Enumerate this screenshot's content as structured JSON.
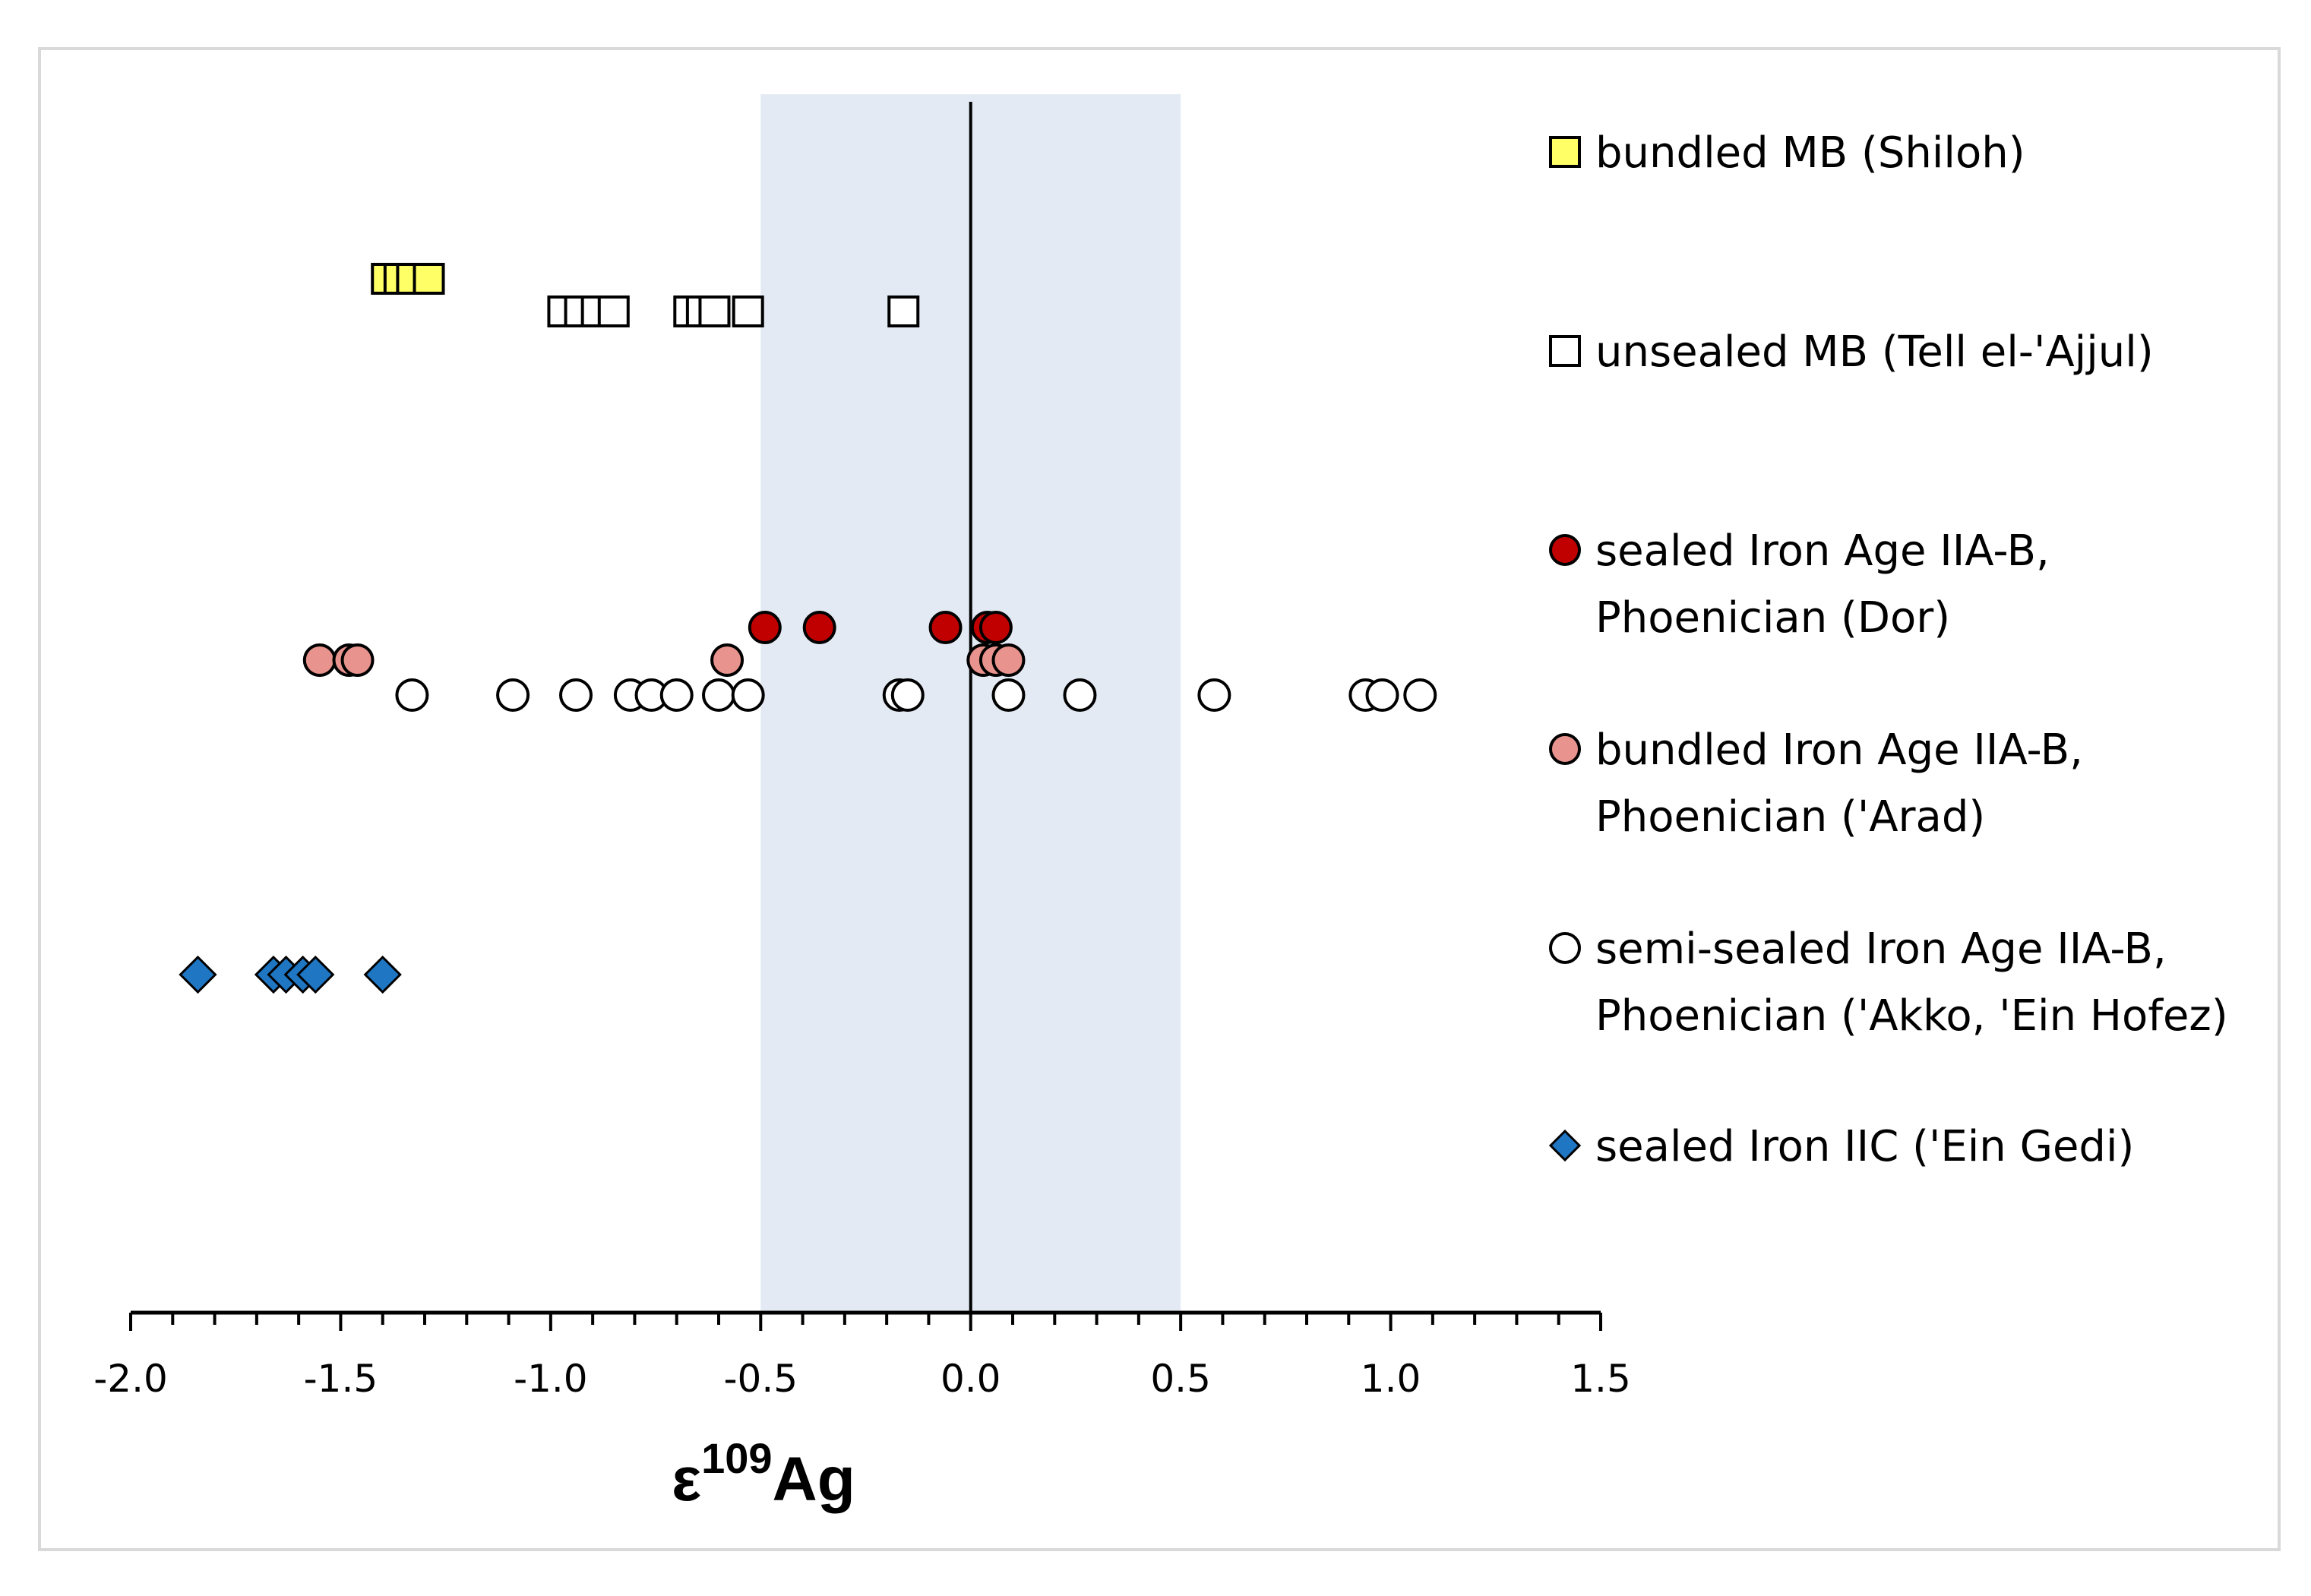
{
  "chart_data": {
    "type": "scatter",
    "xlabel": "ε",
    "xlabel_sup": "109",
    "xlabel_suffix": "Ag",
    "ylabel": "",
    "xlim": [
      -2.0,
      1.5
    ],
    "xticks": [
      "-2.0",
      "-1.5",
      "-1.0",
      "-0.5",
      "0.0",
      "0.5",
      "1.0",
      "1.5"
    ],
    "xtick_values": [
      -2.0,
      -1.5,
      -1.0,
      -0.5,
      0.0,
      0.5,
      1.0,
      1.5
    ],
    "shaded_band": [
      -0.5,
      0.5
    ],
    "shaded_band_color": "#e4eaf4",
    "reference_line_x": 0.0,
    "grid": false,
    "legend_position": "right",
    "series": [
      {
        "name_lines": [
          "bundled MB (Shiloh)"
        ],
        "marker": "square",
        "fill": "#ffff66",
        "stroke": "#000000",
        "x": [
          -1.39,
          -1.36,
          -1.33,
          -1.29
        ],
        "row": 0
      },
      {
        "name_lines": [
          "unsealed MB (Tell el-'Ajjul)"
        ],
        "marker": "square",
        "fill": "#ffffff",
        "stroke": "#000000",
        "x": [
          -0.97,
          -0.93,
          -0.89,
          -0.85,
          -0.67,
          -0.64,
          -0.61,
          -0.53,
          -0.16
        ],
        "row": 1
      },
      {
        "name_lines": [
          "sealed Iron Age IIA-B,",
          "Phoenician (Dor)"
        ],
        "marker": "circle",
        "fill": "#c00000",
        "stroke": "#000000",
        "x": [
          -0.49,
          -0.36,
          -0.06,
          0.04,
          0.06
        ],
        "row": 2
      },
      {
        "name_lines": [
          "bundled Iron Age IIA-B,",
          "Phoenician ('Arad)"
        ],
        "marker": "circle",
        "fill": "#e8938e",
        "stroke": "#000000",
        "x": [
          -1.55,
          -1.48,
          -1.46,
          -0.58,
          0.03,
          0.06,
          0.09
        ],
        "row": 3
      },
      {
        "name_lines": [
          "semi-sealed Iron Age IIA-B,",
          "Phoenician ('Akko, 'Ein Hofez)"
        ],
        "marker": "circle",
        "fill": "#ffffff",
        "stroke": "#000000",
        "x": [
          -1.33,
          -1.09,
          -0.94,
          -0.81,
          -0.76,
          -0.7,
          -0.6,
          -0.53,
          -0.17,
          -0.15,
          0.09,
          0.26,
          0.58,
          0.94,
          0.98,
          1.07
        ],
        "row": 4
      },
      {
        "name_lines": [
          "sealed Iron IIC ('Ein Gedi)"
        ],
        "marker": "diamond",
        "fill": "#1f77c4",
        "stroke": "#000000",
        "x": [
          -1.84,
          -1.66,
          -1.63,
          -1.59,
          -1.56,
          -1.4
        ],
        "row": 5
      }
    ]
  }
}
